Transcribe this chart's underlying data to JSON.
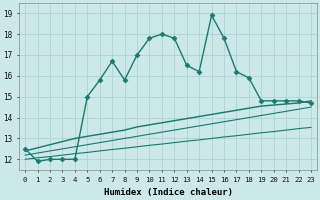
{
  "xlabel": "Humidex (Indice chaleur)",
  "bg_color": "#cce8e8",
  "grid_color": "#aad4d4",
  "line_color": "#1a7a6e",
  "x_data": [
    0,
    1,
    2,
    3,
    4,
    5,
    6,
    7,
    8,
    9,
    10,
    11,
    12,
    13,
    14,
    15,
    16,
    17,
    18,
    19,
    20,
    21,
    22,
    23
  ],
  "y_main": [
    12.5,
    11.9,
    12.0,
    12.0,
    12.0,
    15.0,
    15.8,
    16.7,
    15.8,
    17.0,
    17.8,
    18.0,
    17.8,
    16.5,
    16.2,
    18.9,
    17.8,
    16.2,
    15.9,
    14.8,
    14.8,
    14.8,
    14.8,
    14.7
  ],
  "y_trend1": [
    12.0,
    12.07,
    12.13,
    12.2,
    12.27,
    12.33,
    12.4,
    12.47,
    12.53,
    12.6,
    12.67,
    12.73,
    12.8,
    12.87,
    12.93,
    13.0,
    13.07,
    13.13,
    13.2,
    13.27,
    13.33,
    13.4,
    13.47,
    13.53
  ],
  "y_trend2": [
    12.2,
    12.3,
    12.4,
    12.5,
    12.6,
    12.7,
    12.8,
    12.9,
    13.0,
    13.1,
    13.2,
    13.3,
    13.4,
    13.5,
    13.6,
    13.7,
    13.8,
    13.9,
    14.0,
    14.1,
    14.2,
    14.3,
    14.4,
    14.5
  ],
  "y_trend3": [
    12.4,
    12.55,
    12.7,
    12.85,
    13.0,
    13.1,
    13.2,
    13.3,
    13.4,
    13.55,
    13.65,
    13.75,
    13.85,
    13.95,
    14.05,
    14.15,
    14.25,
    14.35,
    14.45,
    14.55,
    14.6,
    14.65,
    14.7,
    14.8
  ],
  "ylim": [
    11.5,
    19.5
  ],
  "xlim": [
    -0.5,
    23.5
  ],
  "yticks": [
    12,
    13,
    14,
    15,
    16,
    17,
    18,
    19
  ],
  "xticks": [
    0,
    1,
    2,
    3,
    4,
    5,
    6,
    7,
    8,
    9,
    10,
    11,
    12,
    13,
    14,
    15,
    16,
    17,
    18,
    19,
    20,
    21,
    22,
    23
  ],
  "marker_size": 2.5,
  "linewidth": 1.0,
  "trend_linewidth": 0.8
}
